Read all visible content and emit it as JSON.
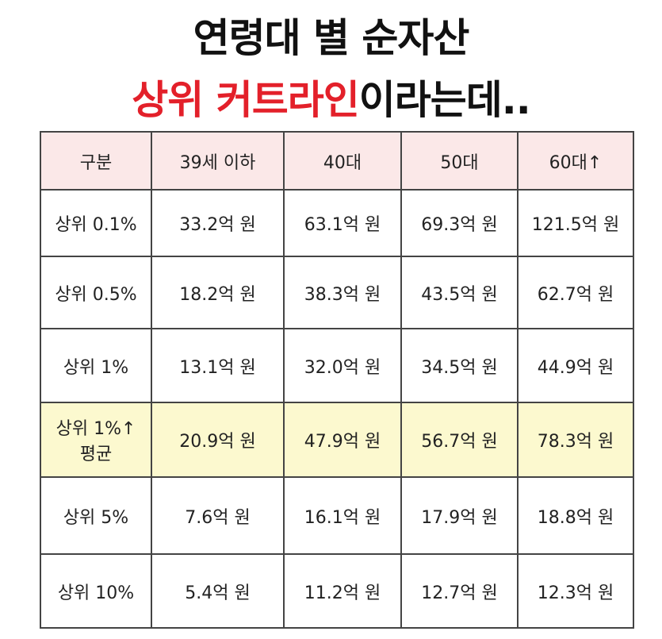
{
  "header": {
    "title_line1": "연령대 별 순자산",
    "title_line2_highlight": "상위 커트라인",
    "title_line2_rest": "이라는데.."
  },
  "table": {
    "columns": [
      "구분",
      "39세 이하",
      "40대",
      "50대",
      "60대↑"
    ],
    "rows": [
      [
        "상위 0.1%",
        "33.2억 원",
        "63.1억 원",
        "69.3억 원",
        "121.5억 원"
      ],
      [
        "상위 0.5%",
        "18.2억 원",
        "38.3억 원",
        "43.5억 원",
        "62.7억 원"
      ],
      [
        "상위 1%",
        "13.1억 원",
        "32.0억 원",
        "34.5억 원",
        "44.9억 원"
      ],
      [
        "상위 1%↑\n평균",
        "20.9억 원",
        "47.9억 원",
        "56.7억 원",
        "78.3억 원"
      ],
      [
        "상위 5%",
        "7.6억 원",
        "16.1억 원",
        "17.9억 원",
        "18.8억 원"
      ],
      [
        "상위 10%",
        "5.4억 원",
        "11.2억 원",
        "12.7억 원",
        "12.3억 원"
      ]
    ]
  }
}
